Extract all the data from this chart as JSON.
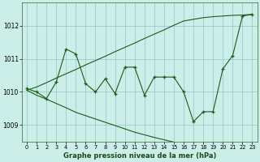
{
  "x": [
    0,
    1,
    2,
    3,
    4,
    5,
    6,
    7,
    8,
    9,
    10,
    11,
    12,
    13,
    14,
    15,
    16,
    17,
    18,
    19,
    20,
    21,
    22,
    23
  ],
  "line_main": [
    1010.1,
    1010.0,
    1009.8,
    1010.3,
    1011.3,
    1011.15,
    1010.25,
    1010.0,
    1010.4,
    1009.95,
    1010.75,
    1010.75,
    1009.9,
    1010.45,
    1010.45,
    1010.45,
    1010.0,
    1009.1,
    1009.4,
    1009.4,
    1010.7,
    1011.1,
    1012.3,
    1012.35
  ],
  "line_upper": [
    1010.05,
    1010.15,
    1010.28,
    1010.42,
    1010.55,
    1010.68,
    1010.82,
    1010.95,
    1011.08,
    1011.22,
    1011.35,
    1011.48,
    1011.62,
    1011.75,
    1011.88,
    1012.02,
    1012.15,
    1012.2,
    1012.25,
    1012.28,
    1012.3,
    1012.32,
    1012.33,
    1012.35
  ],
  "line_lower": [
    1010.05,
    1009.9,
    1009.78,
    1009.65,
    1009.52,
    1009.38,
    1009.28,
    1009.18,
    1009.08,
    1008.98,
    1008.88,
    1008.78,
    1008.7,
    1008.62,
    1008.55,
    1008.48,
    1008.4,
    1008.35,
    1008.3,
    1008.28,
    1008.25,
    1008.22,
    1008.2,
    1008.18
  ],
  "line_color": "#1a5c1a",
  "bg_color": "#cceee8",
  "grid_color": "#99cccc",
  "xlabel": "Graphe pression niveau de la mer (hPa)",
  "ylim": [
    1008.5,
    1012.7
  ],
  "yticks": [
    1009,
    1010,
    1011,
    1012
  ],
  "xticks": [
    0,
    1,
    2,
    3,
    4,
    5,
    6,
    7,
    8,
    9,
    10,
    11,
    12,
    13,
    14,
    15,
    16,
    17,
    18,
    19,
    20,
    21,
    22,
    23
  ]
}
